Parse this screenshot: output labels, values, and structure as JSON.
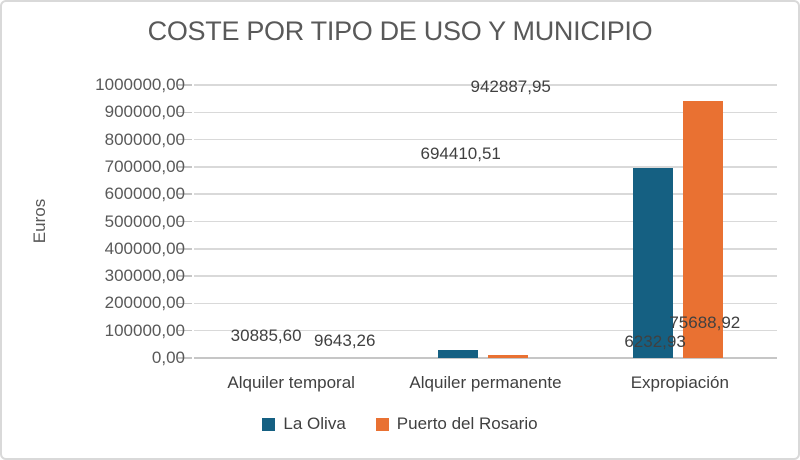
{
  "chart_data": {
    "type": "bar",
    "title": "COSTE POR TIPO DE USO Y MUNICIPIO",
    "xlabel": "",
    "ylabel": "Euros",
    "categories": [
      "Alquiler temporal",
      "Alquiler permanente",
      "Expropiación"
    ],
    "series": [
      {
        "name": "La Oliva",
        "color": "#156082",
        "values": [
          30885.6,
          694410.51,
          6232.93
        ],
        "value_labels": [
          "30885,60",
          "694410,51",
          "6232,93"
        ]
      },
      {
        "name": "Puerto del Rosario",
        "color": "#E97132",
        "values": [
          9643.26,
          942887.95,
          75688.92
        ],
        "value_labels": [
          "9643,26",
          "942887,95",
          "75688,92"
        ]
      }
    ],
    "ylim": [
      0,
      1000000
    ],
    "y_tick_step": 100000,
    "y_tick_labels": [
      "0,00",
      "100000,00",
      "200000,00",
      "300000,00",
      "400000,00",
      "500000,00",
      "600000,00",
      "700000,00",
      "800000,00",
      "900000,00",
      "1000000,00"
    ],
    "grid": true,
    "legend_position": "bottom"
  },
  "colors": {
    "background": "#FFFFFF",
    "border": "#D9D9D9",
    "gridline": "#D9D9D9",
    "axis_line": "#C6C6C6",
    "title_text": "#595959",
    "axis_text": "#595959",
    "label_text": "#404040"
  }
}
